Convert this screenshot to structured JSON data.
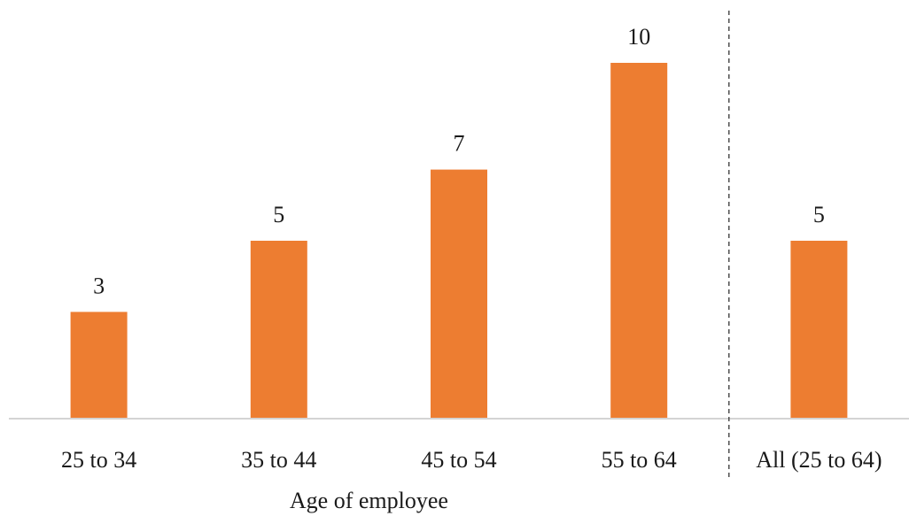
{
  "chart_data": {
    "type": "bar",
    "categories": [
      "25 to 34",
      "35 to 44",
      "45 to 54",
      "55 to 64",
      "All (25 to 64)"
    ],
    "values": [
      3,
      5,
      7,
      10,
      5
    ],
    "data_labels": [
      "3",
      "5",
      "7",
      "10",
      "5"
    ],
    "title": "",
    "xlabel": "Age of employee",
    "ylabel": "",
    "ylim": [
      0,
      10
    ],
    "grid": false,
    "legend": "none",
    "separator_before_category": "All (25 to 64)",
    "colors": {
      "bar": "#ED7D31",
      "baseline": "#d4d4d4",
      "divider": "#333333",
      "text": "#1a1a1a"
    }
  }
}
